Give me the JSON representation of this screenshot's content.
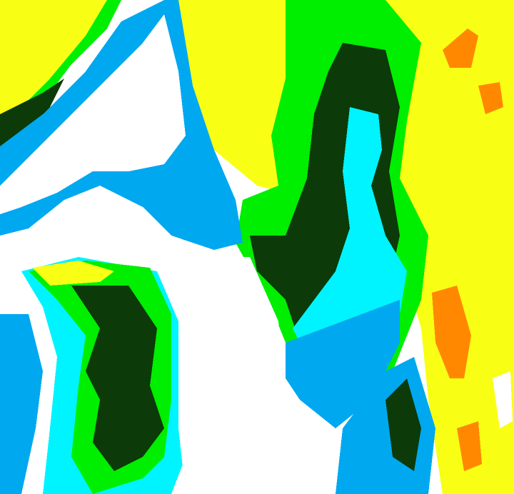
{
  "map": {
    "type": "classified-raster",
    "classes": [
      {
        "key": "white",
        "color": "#ffffff"
      },
      {
        "key": "blue",
        "color": "#00a8f0"
      },
      {
        "key": "cyan",
        "color": "#00f4ff"
      },
      {
        "key": "dark-green",
        "color": "#0c3a08"
      },
      {
        "key": "green",
        "color": "#00ee00"
      },
      {
        "key": "yellow",
        "color": "#f8ff14"
      },
      {
        "key": "orange",
        "color": "#ff8800"
      }
    ]
  }
}
